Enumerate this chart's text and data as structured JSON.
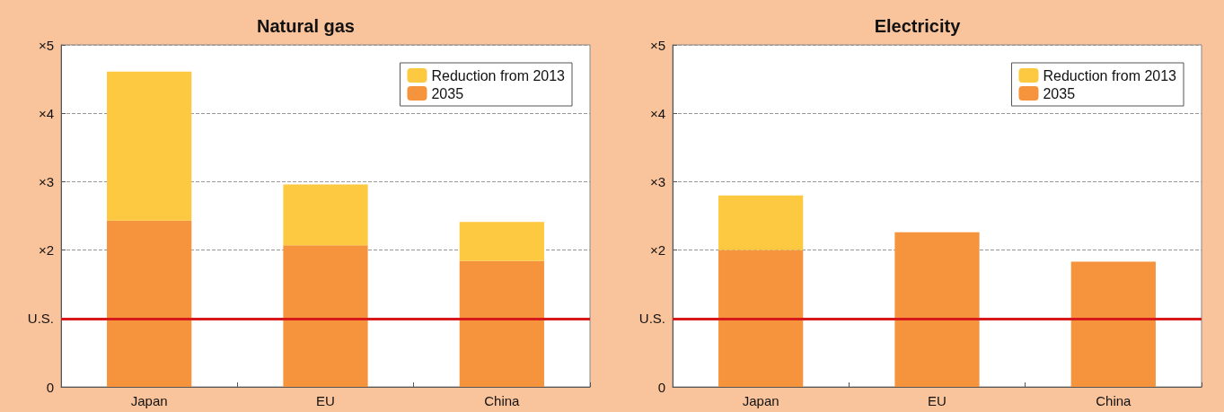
{
  "chart_data": [
    {
      "type": "bar",
      "title": "Natural gas",
      "categories": [
        "Japan",
        "EU",
        "China"
      ],
      "stacked": true,
      "series": [
        {
          "name": "2035",
          "color": "#f5943c",
          "values": [
            2.43,
            2.07,
            1.84
          ]
        },
        {
          "name": "Reduction from 2013",
          "color": "#fdc940",
          "values": [
            2.18,
            0.89,
            0.57
          ]
        }
      ],
      "ylim": [
        0,
        5
      ],
      "yticks": [
        0,
        {
          "value": 1,
          "label": "U.S."
        },
        {
          "value": 2,
          "label": "×2"
        },
        {
          "value": 3,
          "label": "×3"
        },
        {
          "value": 4,
          "label": "×4"
        },
        {
          "value": 5,
          "label": "×5"
        }
      ],
      "grid": "y",
      "legend": "top right",
      "ref_lines": [
        {
          "axis": "y",
          "value": 1,
          "color": "#d7191c"
        }
      ]
    },
    {
      "type": "bar",
      "title": "Electricity",
      "categories": [
        "Japan",
        "EU",
        "China"
      ],
      "stacked": true,
      "series": [
        {
          "name": "2035",
          "color": "#f5943c",
          "values": [
            2.0,
            2.26,
            1.83
          ]
        },
        {
          "name": "Reduction from 2013",
          "color": "#fdc940",
          "values": [
            0.8,
            0,
            0
          ]
        }
      ],
      "ylim": [
        0,
        5
      ],
      "yticks": [
        0,
        {
          "value": 1,
          "label": "U.S."
        },
        {
          "value": 2,
          "label": "×2"
        },
        {
          "value": 3,
          "label": "×3"
        },
        {
          "value": 4,
          "label": "×4"
        },
        {
          "value": 5,
          "label": "×5"
        }
      ],
      "grid": "y",
      "legend": "top right",
      "ref_lines": [
        {
          "axis": "y",
          "value": 1,
          "color": "#d7191c"
        }
      ]
    }
  ]
}
